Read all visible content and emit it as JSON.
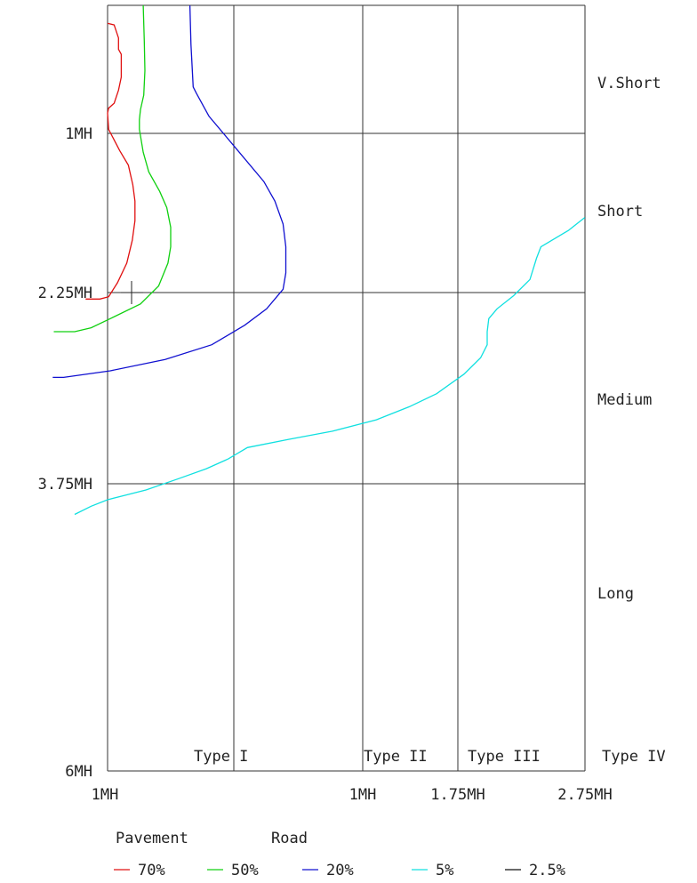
{
  "chart_data": {
    "type": "line",
    "y_tick_labels": [
      "1MH",
      "2.25MH",
      "3.75MH",
      "6MH"
    ],
    "x_tick_labels": [
      "1MH",
      "1MH",
      "1.75MH",
      "2.75MH"
    ],
    "row_labels": [
      "V.Short",
      "Short",
      "Medium",
      "Long"
    ],
    "column_labels": [
      "Type I",
      "Type II",
      "Type III",
      "Type IV"
    ],
    "legend_title_left": "Pavement",
    "legend_title_right": "Road",
    "legend_position": "bottom",
    "grid": true,
    "series": [
      {
        "name": "70%",
        "color": "#e01010",
        "points": [
          [
            0,
            0.55
          ],
          [
            0.12,
            0.6
          ],
          [
            0.2,
            1.0
          ],
          [
            0.2,
            1.35
          ],
          [
            0.25,
            1.5
          ],
          [
            0.25,
            2.2
          ],
          [
            0.2,
            2.6
          ],
          [
            0.12,
            3.0
          ],
          [
            0.02,
            3.15
          ],
          [
            0.0,
            3.3
          ],
          [
            0.02,
            3.8
          ],
          [
            0.22,
            4.45
          ],
          [
            0.38,
            4.9
          ],
          [
            0.46,
            5.5
          ],
          [
            0.5,
            6.0
          ],
          [
            0.5,
            6.6
          ],
          [
            0.45,
            7.2
          ],
          [
            0.35,
            7.9
          ],
          [
            0.18,
            8.5
          ],
          [
            0.02,
            8.93
          ],
          [
            -0.14,
            9.0
          ],
          [
            -0.4,
            9.0
          ]
        ]
      },
      {
        "name": "50%",
        "color": "#10d010",
        "points": [
          [
            0.65,
            0.0
          ],
          [
            0.67,
            1.1
          ],
          [
            0.68,
            2.0
          ],
          [
            0.66,
            2.75
          ],
          [
            0.6,
            3.2
          ],
          [
            0.58,
            3.5
          ],
          [
            0.58,
            3.8
          ],
          [
            0.65,
            4.5
          ],
          [
            0.75,
            5.1
          ],
          [
            0.95,
            5.7
          ],
          [
            1.08,
            6.2
          ],
          [
            1.15,
            6.8
          ],
          [
            1.15,
            7.4
          ],
          [
            1.1,
            7.9
          ],
          [
            0.93,
            8.6
          ],
          [
            0.6,
            9.15
          ],
          [
            0.05,
            9.6
          ],
          [
            -0.3,
            9.88
          ],
          [
            -0.6,
            10.0
          ],
          [
            -0.98,
            10.0
          ]
        ]
      },
      {
        "name": "20%",
        "color": "#1010d0",
        "points": [
          [
            1.5,
            0.0
          ],
          [
            1.52,
            1.2
          ],
          [
            1.56,
            2.5
          ],
          [
            1.62,
            2.7
          ],
          [
            1.85,
            3.4
          ],
          [
            2.3,
            4.3
          ],
          [
            2.85,
            5.4
          ],
          [
            3.05,
            6.0
          ],
          [
            3.2,
            6.7
          ],
          [
            3.25,
            7.4
          ],
          [
            3.25,
            8.2
          ],
          [
            3.2,
            8.7
          ],
          [
            2.9,
            9.3
          ],
          [
            2.5,
            9.8
          ],
          [
            1.9,
            10.4
          ],
          [
            1.05,
            10.85
          ],
          [
            0.05,
            11.2
          ],
          [
            -0.8,
            11.4
          ],
          [
            -1.0,
            11.4
          ]
        ]
      },
      {
        "name": "5%",
        "color": "#10e0e0",
        "points": [
          [
            8.7,
            6.5
          ],
          [
            8.4,
            6.9
          ],
          [
            8.1,
            7.2
          ],
          [
            7.9,
            7.4
          ],
          [
            7.82,
            7.75
          ],
          [
            7.7,
            8.4
          ],
          [
            7.4,
            8.9
          ],
          [
            7.1,
            9.3
          ],
          [
            6.95,
            9.6
          ],
          [
            6.92,
            10.0
          ],
          [
            6.92,
            10.4
          ],
          [
            6.8,
            10.8
          ],
          [
            6.5,
            11.3
          ],
          [
            6.0,
            11.9
          ],
          [
            5.5,
            12.3
          ],
          [
            4.9,
            12.7
          ],
          [
            4.1,
            13.05
          ],
          [
            3.3,
            13.3
          ],
          [
            2.55,
            13.55
          ],
          [
            2.2,
            13.9
          ],
          [
            1.8,
            14.2
          ],
          [
            1.3,
            14.5
          ],
          [
            0.7,
            14.85
          ],
          [
            0.35,
            15.0
          ],
          [
            0.0,
            15.15
          ],
          [
            -0.3,
            15.35
          ],
          [
            -0.6,
            15.6
          ]
        ]
      },
      {
        "name": "2.5%",
        "color": "#111111",
        "points": []
      }
    ]
  }
}
